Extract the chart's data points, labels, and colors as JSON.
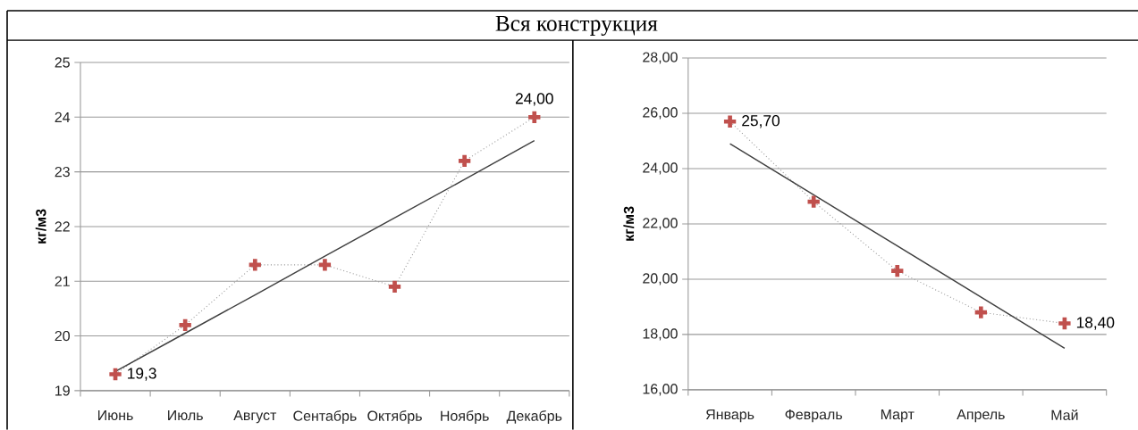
{
  "chart_data": [
    {
      "type": "line",
      "title": "Вся конструкция",
      "ylabel": "кг/м3",
      "categories": [
        "Июнь",
        "Июль",
        "Август",
        "Сентабрь",
        "Октябрь",
        "Ноябрь",
        "Декабрь"
      ],
      "series": [
        {
          "color": "#c0504d",
          "marker": "cross",
          "line_style": "dotted",
          "values": [
            19.3,
            20.2,
            21.3,
            21.3,
            20.9,
            23.2,
            24.0
          ],
          "value_labels": [
            "19,3",
            null,
            null,
            null,
            null,
            null,
            "24,00"
          ]
        },
        {
          "color": "#404040",
          "marker": "none",
          "line_style": "solid",
          "values": [
            19.35,
            20.05,
            20.75,
            21.46,
            22.16,
            22.86,
            23.57
          ]
        }
      ],
      "ylim": [
        19,
        25
      ],
      "yticks": [
        19,
        20,
        21,
        22,
        23,
        24,
        25
      ],
      "grid": "y"
    },
    {
      "type": "line",
      "ylabel": "кг/м3",
      "categories": [
        "Январь",
        "Февраль",
        "Март",
        "Апрель",
        "Май"
      ],
      "series": [
        {
          "color": "#c0504d",
          "marker": "cross",
          "line_style": "dotted",
          "values": [
            25.7,
            22.8,
            20.3,
            18.8,
            18.4
          ],
          "value_labels": [
            "25,70",
            null,
            null,
            null,
            "18,40"
          ]
        },
        {
          "color": "#404040",
          "marker": "none",
          "line_style": "solid",
          "values": [
            24.9,
            23.05,
            21.2,
            19.35,
            17.5
          ]
        }
      ],
      "ylim": [
        16,
        28
      ],
      "yticks": [
        {
          "value": 16,
          "label": "16,00"
        },
        {
          "value": 18,
          "label": "18,00"
        },
        {
          "value": 20,
          "label": "20,00"
        },
        {
          "value": 22,
          "label": "22,00"
        },
        {
          "value": 24,
          "label": "24,00"
        },
        {
          "value": 26,
          "label": "26,00"
        },
        {
          "value": 28,
          "label": "28,00"
        }
      ],
      "grid": "y"
    }
  ]
}
